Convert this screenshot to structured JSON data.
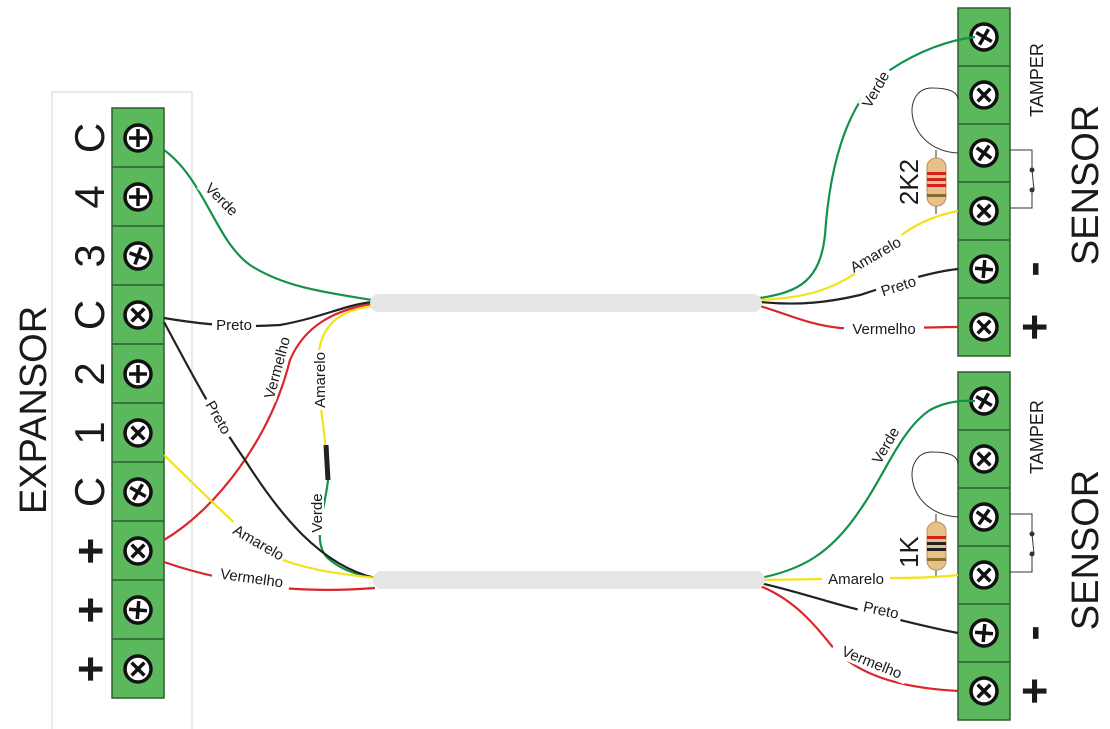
{
  "expansor": {
    "title": "EXPANSOR",
    "terminals": [
      "C",
      "4",
      "3",
      "C",
      "2",
      "1",
      "C",
      "+",
      "+",
      "+"
    ]
  },
  "sensor_top": {
    "title": "SENSOR",
    "tamper_label": "TAMPER",
    "resistor_label": "2K2",
    "minus_label": "-",
    "plus_label": "+"
  },
  "sensor_bottom": {
    "title": "SENSOR",
    "tamper_label": "TAMPER",
    "resistor_label": "1K",
    "minus_label": "-",
    "plus_label": "+"
  },
  "wire_labels": {
    "verde": "Verde",
    "preto": "Preto",
    "amarelo": "Amarelo",
    "vermelho": "Vermelho"
  },
  "colors": {
    "terminal_green": "#5cb85c",
    "wire_green": "#14914a",
    "wire_black": "#222222",
    "wire_yellow": "#f2e21a",
    "wire_red": "#d9262b",
    "cable_gray": "#e5e5e6"
  }
}
